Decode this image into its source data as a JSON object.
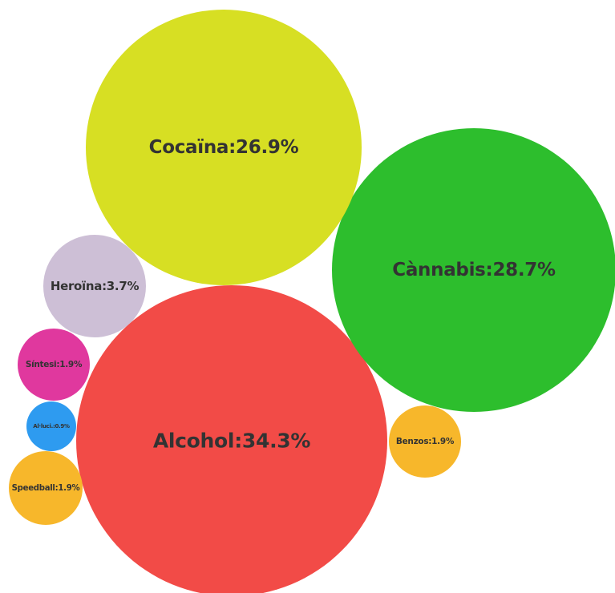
{
  "chart_data": {
    "type": "bubble",
    "title": "",
    "series": [
      {
        "category": "Alcohol",
        "label": "Alcohol:34.3%",
        "value": 34.3,
        "color": "#F24B47"
      },
      {
        "category": "Cànnabis",
        "label": "Cànnabis:28.7%",
        "value": 28.7,
        "color": "#2DBE2D"
      },
      {
        "category": "Cocaïna",
        "label": "Cocaïna:26.9%",
        "value": 26.9,
        "color": "#D7DF23"
      },
      {
        "category": "Heroïna",
        "label": "Heroïna:3.7%",
        "value": 3.7,
        "color": "#CDBFD6"
      },
      {
        "category": "Síntesi",
        "label": "Síntesi:1.9%",
        "value": 1.9,
        "color": "#E0389E"
      },
      {
        "category": "Benzos",
        "label": "Benzos:1.9%",
        "value": 1.9,
        "color": "#F7B72B"
      },
      {
        "category": "Speedball",
        "label": "Speedball:1.9%",
        "value": 1.9,
        "color": "#F7B72B"
      },
      {
        "category": "Al·luci.",
        "label": "Al·luci.:0.9%",
        "value": 0.9,
        "color": "#2E9BF0"
      }
    ]
  }
}
